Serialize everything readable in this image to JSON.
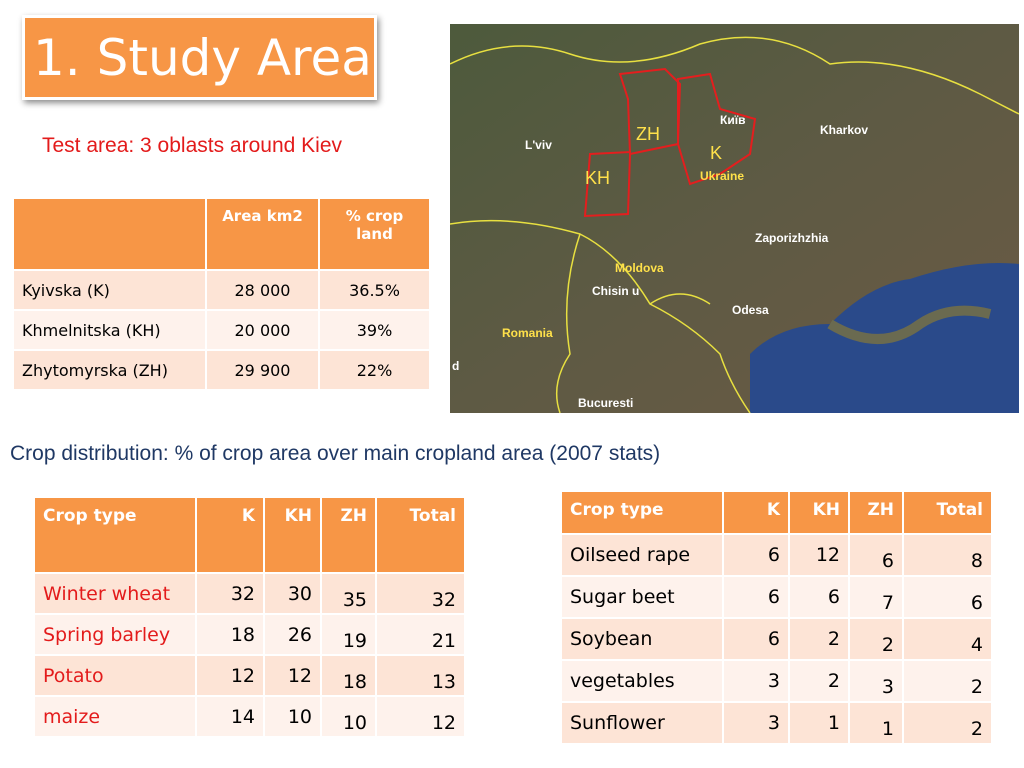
{
  "title": "1. Study Area",
  "subtitle": "Test area: 3 oblasts around Kiev",
  "area_table": {
    "header": [
      "Area km2",
      "% crop land"
    ],
    "rows": [
      [
        "Kyivska (K)",
        "28 000",
        "36.5%"
      ],
      [
        "Khmelnitska (KH)",
        "20 000",
        "39%"
      ],
      [
        "Zhytomyrska (ZH)",
        "29 900",
        "22%"
      ]
    ]
  },
  "crop_caption": "Crop distribution: % of crop area over main cropland area (2007 stats)",
  "crop_table_1": {
    "header": [
      "Crop type",
      "K",
      "KH",
      "ZH",
      "Total"
    ],
    "rows": [
      [
        "Winter wheat",
        32,
        30,
        35,
        32
      ],
      [
        "Spring barley",
        18,
        26,
        19,
        21
      ],
      [
        "Potato",
        12,
        12,
        18,
        13
      ],
      [
        "maize",
        14,
        10,
        10,
        12
      ]
    ]
  },
  "crop_table_2": {
    "header": [
      "Crop type",
      "K",
      "KH",
      "ZH",
      "Total"
    ],
    "rows": [
      [
        "Oilseed rape",
        6,
        12,
        6,
        8
      ],
      [
        "Sugar beet",
        6,
        6,
        7,
        6
      ],
      [
        "Soybean",
        6,
        2,
        2,
        4
      ],
      [
        "vegetables",
        3,
        2,
        3,
        2
      ],
      [
        "Sunflower",
        3,
        1,
        1,
        2
      ]
    ]
  },
  "map": {
    "labels": [
      "L'viv",
      "ZH",
      "Київ",
      "K",
      "KH",
      "Ukraine",
      "Kharkov",
      "Zaporizhzhia",
      "Moldova",
      "Chisin u",
      "Odesa",
      "Romania",
      "Bucuresti",
      "d"
    ]
  }
}
